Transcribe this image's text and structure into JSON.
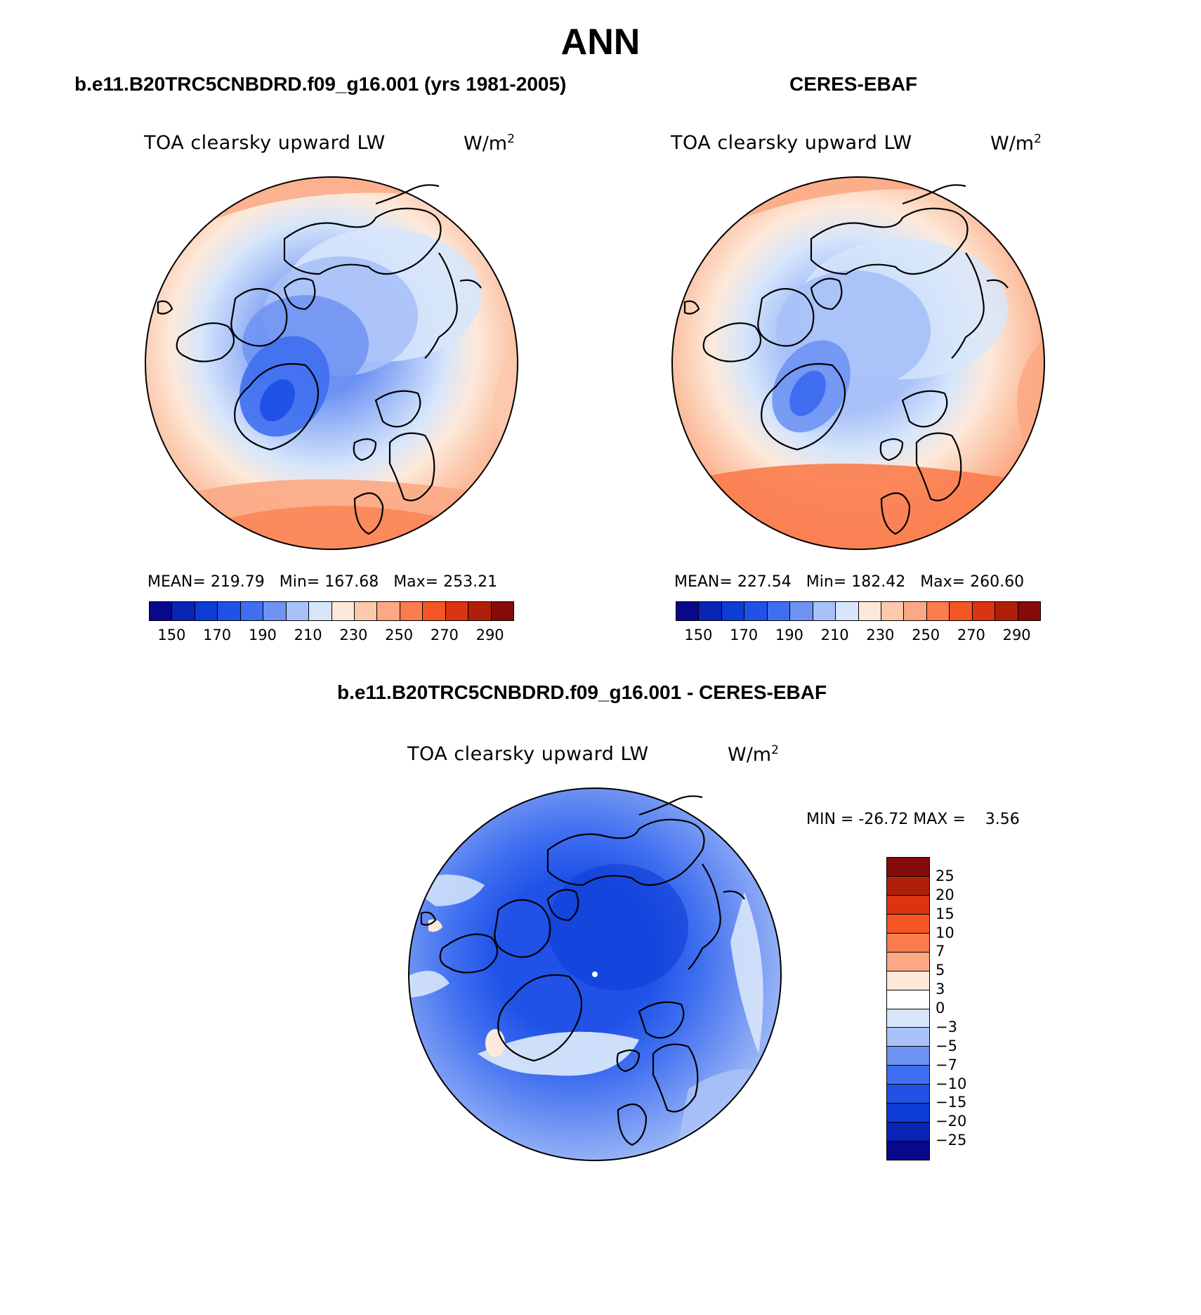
{
  "main_title": "ANN",
  "panels": [
    {
      "title": "b.e11.B20TRC5CNBDRD.f09_g16.001 (yrs 1981-2005)",
      "variable": "TOA clearsky upward LW",
      "units": "W/m",
      "units_exp": "2",
      "stats": "MEAN= 219.79   Min= 167.68   Max= 253.21"
    },
    {
      "title": "CERES-EBAF",
      "variable": "TOA clearsky upward LW",
      "units": "W/m",
      "units_exp": "2",
      "stats": "MEAN= 227.54   Min= 182.42   Max= 260.60"
    },
    {
      "title": "b.e11.B20TRC5CNBDRD.f09_g16.001 - CERES-EBAF",
      "variable": "TOA clearsky upward LW",
      "units": "W/m",
      "units_exp": "2",
      "stats": "MIN = -26.72 MAX =    3.56"
    }
  ],
  "colorbar_abs": {
    "colors": [
      "#08088a",
      "#0a24b8",
      "#0d3dd6",
      "#2052e8",
      "#3f6ff0",
      "#6f93f3",
      "#a8c1f8",
      "#d7e6fb",
      "#fde9da",
      "#fcc9ad",
      "#fca884",
      "#fb7c4c",
      "#f45522",
      "#dc3410",
      "#b02008",
      "#850c0a"
    ],
    "labels": [
      "150",
      "170",
      "190",
      "210",
      "230",
      "250",
      "270",
      "290"
    ]
  },
  "colorbar_diff": {
    "colors": [
      "#850c0a",
      "#b02008",
      "#dc3410",
      "#f45522",
      "#fb7c4c",
      "#fca884",
      "#fde9da",
      "#ffffff",
      "#d7e6fb",
      "#a8c1f8",
      "#6f93f3",
      "#3f6ff0",
      "#2052e8",
      "#0d3dd6",
      "#0a24b8",
      "#08088a"
    ],
    "labels": [
      "25",
      "20",
      "15",
      "10",
      "7",
      "5",
      "3",
      "0",
      "-3",
      "-5",
      "-7",
      "-10",
      "-15",
      "-20",
      "-25"
    ]
  }
}
